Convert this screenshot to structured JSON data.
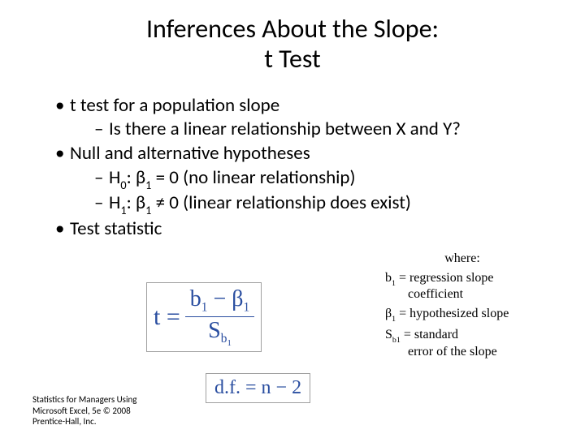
{
  "title_line1": "Inferences About the Slope:",
  "title_line2": "t Test",
  "bullets": {
    "b1": "t test for a population slope",
    "b1a": "Is there a linear relationship between X and Y?",
    "b2": "Null and alternative hypotheses",
    "b2a_prefix": " H",
    "b2a_sub": "0",
    "b2a_mid": ":  β",
    "b2a_sub2": "1",
    "b2a_rest": " = 0    (no linear relationship)",
    "b2b_prefix": " H",
    "b2b_sub": "1",
    "b2b_mid": ":  β",
    "b2b_sub2": "1",
    "b2b_rest": " ≠ 0    (linear relationship does exist)",
    "b3": "Test statistic"
  },
  "where": {
    "label": "where:",
    "d1a": "b",
    "d1sub": "1",
    "d1b": " = regression slope",
    "d1c": "coefficient",
    "d2a": "β",
    "d2sub": "1",
    "d2b": " = hypothesized slope",
    "d3a": "S",
    "d3sub": "b1",
    "d3b": " = standard",
    "d3c": "error of the slope"
  },
  "formula": {
    "t_eq": "t =",
    "num_b": "b",
    "num_sub1": "1",
    "num_minus": " − β",
    "num_sub2": "1",
    "den_S": "S",
    "den_sub": "b",
    "den_sub2": "1",
    "df": "d.f. = n − 2"
  },
  "footer": {
    "l1": "Statistics for Managers Using",
    "l2": "Microsoft Excel, 5e © 2008",
    "l3": "Prentice-Hall, Inc."
  },
  "colors": {
    "formula_text": "#2a4ea0",
    "formula_border": "#a0a0a0",
    "background": "#ffffff",
    "text": "#000000"
  }
}
